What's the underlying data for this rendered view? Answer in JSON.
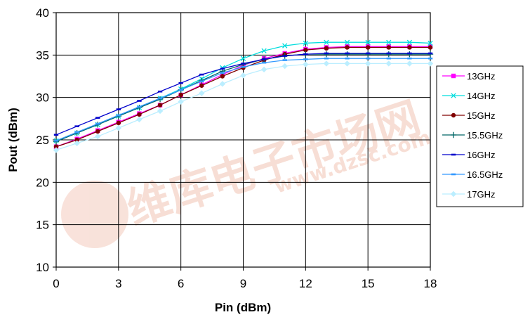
{
  "watermark": {
    "text_cn": "维库电子市场网",
    "text_url": "www.dzsc.com",
    "color": "#f2c4b4"
  },
  "chart_data": {
    "type": "line",
    "xlabel": "Pin (dBm)",
    "ylabel": "Pout (dBm)",
    "xlim": [
      0,
      18
    ],
    "ylim": [
      10,
      40
    ],
    "xticks": [
      0,
      3,
      6,
      9,
      12,
      15,
      18
    ],
    "yticks": [
      10,
      15,
      20,
      25,
      30,
      35,
      40
    ],
    "grid": true,
    "legend_position": "right",
    "x": [
      0,
      1,
      2,
      3,
      4,
      5,
      6,
      7,
      8,
      9,
      10,
      11,
      12,
      13,
      14,
      15,
      16,
      17,
      18
    ],
    "series": [
      {
        "name": "13GHz",
        "color": "#ff00ff",
        "marker": "square",
        "values": [
          24.2,
          25.1,
          26.1,
          27.1,
          28.1,
          29.1,
          30.3,
          31.5,
          32.7,
          33.8,
          34.6,
          35.2,
          35.7,
          35.9,
          36.0,
          36.0,
          36.0,
          36.0,
          36.0
        ]
      },
      {
        "name": "14GHz",
        "color": "#00dddd",
        "marker": "x",
        "values": [
          24.9,
          25.8,
          26.8,
          27.8,
          28.8,
          29.9,
          31.0,
          32.2,
          33.5,
          34.6,
          35.5,
          36.1,
          36.4,
          36.5,
          36.5,
          36.5,
          36.5,
          36.5,
          36.4
        ]
      },
      {
        "name": "15GHz",
        "color": "#800000",
        "marker": "circle",
        "values": [
          24.2,
          25.0,
          26.0,
          27.0,
          28.0,
          29.1,
          30.3,
          31.4,
          32.5,
          33.5,
          34.4,
          35.1,
          35.6,
          35.8,
          35.9,
          35.9,
          35.9,
          35.9,
          35.9
        ]
      },
      {
        "name": "15.5GHz",
        "color": "#006666",
        "marker": "plus",
        "values": [
          24.8,
          25.8,
          26.8,
          27.8,
          28.8,
          29.8,
          30.9,
          32.0,
          33.1,
          33.9,
          34.5,
          34.9,
          35.1,
          35.1,
          35.1,
          35.1,
          35.1,
          35.1,
          35.1
        ]
      },
      {
        "name": "16GHz",
        "color": "#0000cc",
        "marker": "dash",
        "values": [
          25.6,
          26.6,
          27.6,
          28.6,
          29.6,
          30.7,
          31.7,
          32.7,
          33.4,
          34.0,
          34.5,
          34.9,
          35.1,
          35.2,
          35.2,
          35.2,
          35.2,
          35.2,
          35.2
        ]
      },
      {
        "name": "16.5GHz",
        "color": "#3399ff",
        "marker": "dash",
        "values": [
          24.9,
          25.9,
          26.9,
          27.9,
          28.9,
          29.9,
          30.9,
          31.9,
          32.9,
          33.6,
          34.1,
          34.4,
          34.5,
          34.6,
          34.6,
          34.6,
          34.6,
          34.6,
          34.6
        ]
      },
      {
        "name": "17GHz",
        "color": "#bbeeff",
        "marker": "diamond",
        "values": [
          23.8,
          24.6,
          25.4,
          26.4,
          27.4,
          28.4,
          29.5,
          30.5,
          31.6,
          32.6,
          33.3,
          33.7,
          33.9,
          34.0,
          34.0,
          34.0,
          34.0,
          34.0,
          34.0
        ]
      }
    ]
  }
}
